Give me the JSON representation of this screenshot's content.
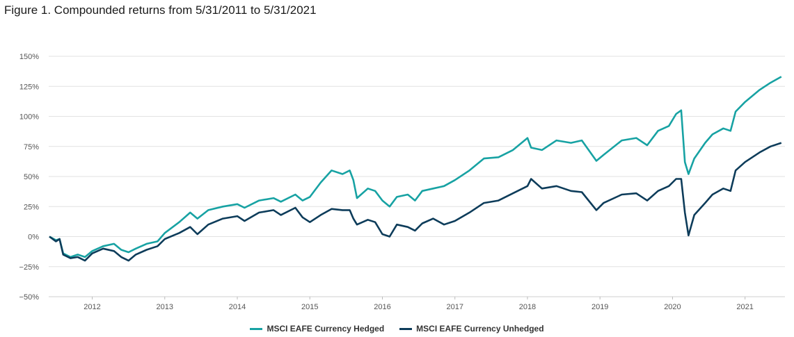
{
  "title": "Figure 1. Compounded returns from 5/31/2011 to 5/31/2021",
  "chart_data": {
    "type": "line",
    "title": "Figure 1. Compounded returns from 5/31/2011 to 5/31/2021",
    "xlabel": "",
    "ylabel": "",
    "ylim": [
      -50,
      150
    ],
    "xlim": [
      2011.4,
      2021.55
    ],
    "y_ticks": [
      "−50%",
      "−25%",
      "0%",
      "25%",
      "50%",
      "75%",
      "100%",
      "125%",
      "150%"
    ],
    "x_ticks": [
      "2012",
      "2013",
      "2014",
      "2015",
      "2016",
      "2017",
      "2018",
      "2019",
      "2020",
      "2021"
    ],
    "grid": true,
    "legend_position": "bottom",
    "series": [
      {
        "name": "MSCI EAFE Currency Hedged",
        "color": "#17a2a3",
        "points": [
          [
            2011.41,
            0
          ],
          [
            2011.5,
            -3
          ],
          [
            2011.55,
            -2
          ],
          [
            2011.6,
            -14
          ],
          [
            2011.7,
            -17
          ],
          [
            2011.8,
            -15
          ],
          [
            2011.9,
            -17
          ],
          [
            2012.0,
            -12
          ],
          [
            2012.15,
            -8
          ],
          [
            2012.3,
            -6
          ],
          [
            2012.4,
            -11
          ],
          [
            2012.5,
            -13
          ],
          [
            2012.6,
            -10
          ],
          [
            2012.75,
            -6
          ],
          [
            2012.9,
            -4
          ],
          [
            2013.0,
            3
          ],
          [
            2013.2,
            12
          ],
          [
            2013.35,
            20
          ],
          [
            2013.45,
            15
          ],
          [
            2013.6,
            22
          ],
          [
            2013.8,
            25
          ],
          [
            2014.0,
            27
          ],
          [
            2014.1,
            24
          ],
          [
            2014.3,
            30
          ],
          [
            2014.5,
            32
          ],
          [
            2014.6,
            29
          ],
          [
            2014.8,
            35
          ],
          [
            2014.9,
            30
          ],
          [
            2015.0,
            33
          ],
          [
            2015.15,
            45
          ],
          [
            2015.3,
            55
          ],
          [
            2015.45,
            52
          ],
          [
            2015.55,
            55
          ],
          [
            2015.6,
            47
          ],
          [
            2015.65,
            32
          ],
          [
            2015.8,
            40
          ],
          [
            2015.9,
            38
          ],
          [
            2016.0,
            30
          ],
          [
            2016.1,
            25
          ],
          [
            2016.2,
            33
          ],
          [
            2016.35,
            35
          ],
          [
            2016.45,
            30
          ],
          [
            2016.55,
            38
          ],
          [
            2016.7,
            40
          ],
          [
            2016.85,
            42
          ],
          [
            2017.0,
            47
          ],
          [
            2017.2,
            55
          ],
          [
            2017.4,
            65
          ],
          [
            2017.6,
            66
          ],
          [
            2017.8,
            72
          ],
          [
            2018.0,
            82
          ],
          [
            2018.05,
            74
          ],
          [
            2018.2,
            72
          ],
          [
            2018.4,
            80
          ],
          [
            2018.6,
            78
          ],
          [
            2018.75,
            80
          ],
          [
            2018.95,
            63
          ],
          [
            2019.05,
            68
          ],
          [
            2019.3,
            80
          ],
          [
            2019.5,
            82
          ],
          [
            2019.65,
            76
          ],
          [
            2019.8,
            88
          ],
          [
            2019.95,
            92
          ],
          [
            2020.05,
            102
          ],
          [
            2020.12,
            105
          ],
          [
            2020.17,
            62
          ],
          [
            2020.22,
            52
          ],
          [
            2020.3,
            65
          ],
          [
            2020.45,
            78
          ],
          [
            2020.55,
            85
          ],
          [
            2020.7,
            90
          ],
          [
            2020.8,
            88
          ],
          [
            2020.87,
            104
          ],
          [
            2021.0,
            112
          ],
          [
            2021.2,
            122
          ],
          [
            2021.35,
            128
          ],
          [
            2021.5,
            133
          ]
        ]
      },
      {
        "name": "MSCI EAFE Currency Unhedged",
        "color": "#0d3c5a",
        "points": [
          [
            2011.41,
            0
          ],
          [
            2011.5,
            -4
          ],
          [
            2011.55,
            -2
          ],
          [
            2011.6,
            -15
          ],
          [
            2011.7,
            -18
          ],
          [
            2011.8,
            -17
          ],
          [
            2011.9,
            -20
          ],
          [
            2012.0,
            -14
          ],
          [
            2012.15,
            -10
          ],
          [
            2012.3,
            -12
          ],
          [
            2012.4,
            -17
          ],
          [
            2012.5,
            -20
          ],
          [
            2012.6,
            -15
          ],
          [
            2012.75,
            -11
          ],
          [
            2012.9,
            -8
          ],
          [
            2013.0,
            -2
          ],
          [
            2013.2,
            3
          ],
          [
            2013.35,
            8
          ],
          [
            2013.45,
            2
          ],
          [
            2013.6,
            10
          ],
          [
            2013.8,
            15
          ],
          [
            2014.0,
            17
          ],
          [
            2014.1,
            13
          ],
          [
            2014.3,
            20
          ],
          [
            2014.5,
            22
          ],
          [
            2014.6,
            18
          ],
          [
            2014.8,
            24
          ],
          [
            2014.9,
            16
          ],
          [
            2015.0,
            12
          ],
          [
            2015.15,
            18
          ],
          [
            2015.3,
            23
          ],
          [
            2015.45,
            22
          ],
          [
            2015.55,
            22
          ],
          [
            2015.6,
            15
          ],
          [
            2015.65,
            10
          ],
          [
            2015.8,
            14
          ],
          [
            2015.9,
            12
          ],
          [
            2016.0,
            2
          ],
          [
            2016.1,
            0
          ],
          [
            2016.2,
            10
          ],
          [
            2016.35,
            8
          ],
          [
            2016.45,
            5
          ],
          [
            2016.55,
            11
          ],
          [
            2016.7,
            15
          ],
          [
            2016.85,
            10
          ],
          [
            2017.0,
            13
          ],
          [
            2017.2,
            20
          ],
          [
            2017.4,
            28
          ],
          [
            2017.6,
            30
          ],
          [
            2017.8,
            36
          ],
          [
            2018.0,
            42
          ],
          [
            2018.05,
            48
          ],
          [
            2018.2,
            40
          ],
          [
            2018.4,
            42
          ],
          [
            2018.6,
            38
          ],
          [
            2018.75,
            37
          ],
          [
            2018.95,
            22
          ],
          [
            2019.05,
            28
          ],
          [
            2019.3,
            35
          ],
          [
            2019.5,
            36
          ],
          [
            2019.65,
            30
          ],
          [
            2019.8,
            38
          ],
          [
            2019.95,
            42
          ],
          [
            2020.05,
            48
          ],
          [
            2020.12,
            48
          ],
          [
            2020.17,
            20
          ],
          [
            2020.22,
            1
          ],
          [
            2020.3,
            18
          ],
          [
            2020.45,
            28
          ],
          [
            2020.55,
            35
          ],
          [
            2020.7,
            40
          ],
          [
            2020.8,
            38
          ],
          [
            2020.87,
            55
          ],
          [
            2021.0,
            62
          ],
          [
            2021.2,
            70
          ],
          [
            2021.35,
            75
          ],
          [
            2021.5,
            78
          ]
        ]
      }
    ]
  }
}
